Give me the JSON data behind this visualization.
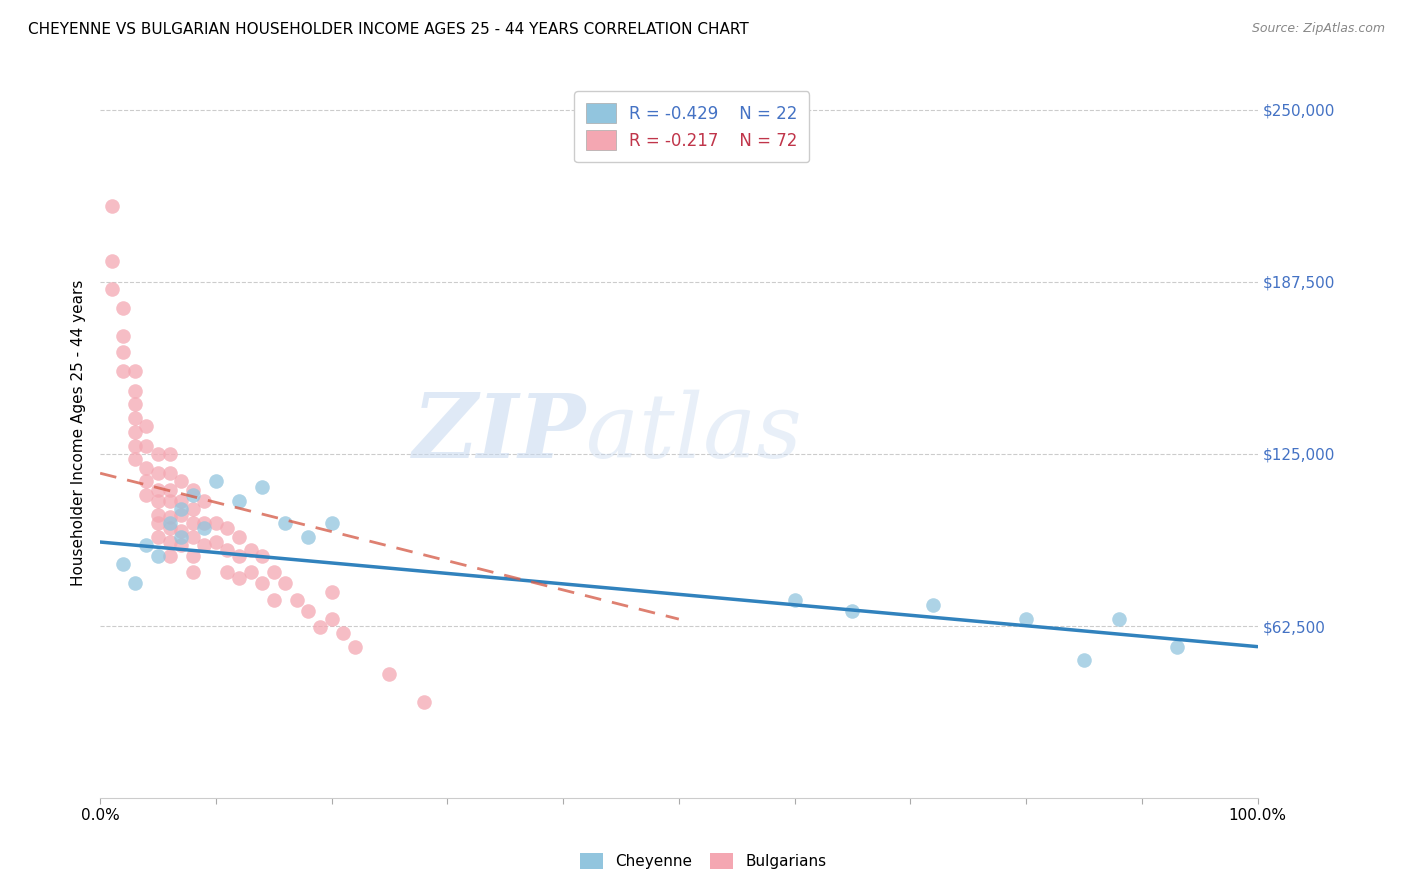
{
  "title": "CHEYENNE VS BULGARIAN HOUSEHOLDER INCOME AGES 25 - 44 YEARS CORRELATION CHART",
  "source": "Source: ZipAtlas.com",
  "ylabel": "Householder Income Ages 25 - 44 years",
  "ytick_labels": [
    "$62,500",
    "$125,000",
    "$187,500",
    "$250,000"
  ],
  "ytick_values": [
    62500,
    125000,
    187500,
    250000
  ],
  "ylim": [
    0,
    265000
  ],
  "xlim": [
    0.0,
    1.0
  ],
  "watermark_zip": "ZIP",
  "watermark_atlas": "atlas",
  "legend_cheyenne_r": "-0.429",
  "legend_cheyenne_n": "22",
  "legend_bulgarian_r": "-0.217",
  "legend_bulgarian_n": "72",
  "cheyenne_color": "#92c5de",
  "bulgarian_color": "#f4a7b2",
  "trendline_cheyenne_color": "#3182bd",
  "trendline_bulgarian_color": "#d6604d",
  "cheyenne_x": [
    0.02,
    0.03,
    0.04,
    0.05,
    0.06,
    0.07,
    0.07,
    0.08,
    0.09,
    0.1,
    0.12,
    0.14,
    0.16,
    0.18,
    0.2,
    0.6,
    0.65,
    0.72,
    0.8,
    0.85,
    0.88,
    0.93
  ],
  "cheyenne_y": [
    85000,
    78000,
    92000,
    88000,
    100000,
    105000,
    95000,
    110000,
    98000,
    115000,
    108000,
    113000,
    100000,
    95000,
    100000,
    72000,
    68000,
    70000,
    65000,
    50000,
    65000,
    55000
  ],
  "bulgarian_x": [
    0.01,
    0.01,
    0.01,
    0.02,
    0.02,
    0.02,
    0.02,
    0.03,
    0.03,
    0.03,
    0.03,
    0.03,
    0.03,
    0.03,
    0.04,
    0.04,
    0.04,
    0.04,
    0.04,
    0.05,
    0.05,
    0.05,
    0.05,
    0.05,
    0.05,
    0.05,
    0.06,
    0.06,
    0.06,
    0.06,
    0.06,
    0.06,
    0.06,
    0.06,
    0.07,
    0.07,
    0.07,
    0.07,
    0.07,
    0.08,
    0.08,
    0.08,
    0.08,
    0.08,
    0.08,
    0.09,
    0.09,
    0.09,
    0.1,
    0.1,
    0.11,
    0.11,
    0.11,
    0.12,
    0.12,
    0.12,
    0.13,
    0.13,
    0.14,
    0.14,
    0.15,
    0.15,
    0.16,
    0.17,
    0.18,
    0.19,
    0.2,
    0.2,
    0.21,
    0.22,
    0.25,
    0.28
  ],
  "bulgarian_y": [
    215000,
    195000,
    185000,
    178000,
    168000,
    162000,
    155000,
    155000,
    148000,
    143000,
    138000,
    133000,
    128000,
    123000,
    135000,
    128000,
    120000,
    115000,
    110000,
    125000,
    118000,
    112000,
    108000,
    103000,
    100000,
    95000,
    125000,
    118000,
    112000,
    108000,
    102000,
    98000,
    93000,
    88000,
    115000,
    108000,
    103000,
    97000,
    92000,
    112000,
    105000,
    100000,
    95000,
    88000,
    82000,
    108000,
    100000,
    92000,
    100000,
    93000,
    98000,
    90000,
    82000,
    95000,
    88000,
    80000,
    90000,
    82000,
    88000,
    78000,
    82000,
    72000,
    78000,
    72000,
    68000,
    62000,
    75000,
    65000,
    60000,
    55000,
    45000,
    35000
  ],
  "cheyenne_trend_x": [
    0.0,
    1.0
  ],
  "cheyenne_trend_y": [
    93000,
    55000
  ],
  "bulgarian_trend_x": [
    0.0,
    0.5
  ],
  "bulgarian_trend_y": [
    118000,
    65000
  ]
}
